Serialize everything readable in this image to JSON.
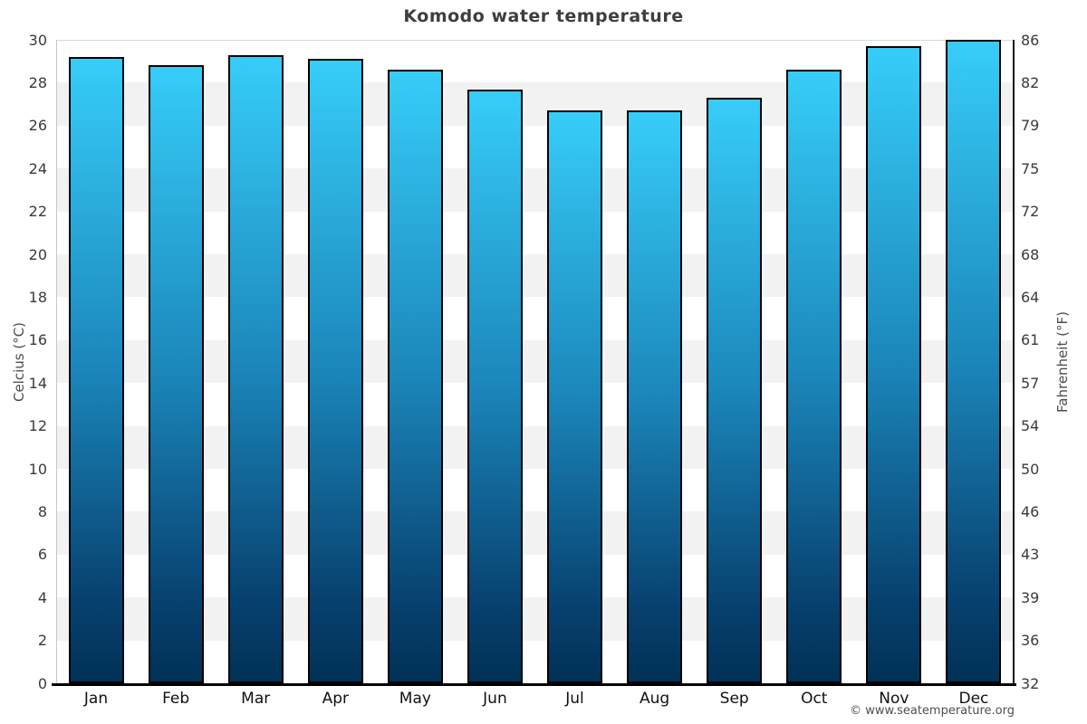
{
  "title": "Komodo water temperature",
  "footer": "© www.seatemperature.org",
  "chart_data": {
    "type": "bar",
    "title": "Komodo water temperature",
    "categories": [
      "Jan",
      "Feb",
      "Mar",
      "Apr",
      "May",
      "Jun",
      "Jul",
      "Aug",
      "Sep",
      "Oct",
      "Nov",
      "Dec"
    ],
    "values": [
      29.2,
      28.8,
      29.3,
      29.1,
      28.6,
      27.7,
      26.7,
      26.7,
      27.3,
      28.6,
      29.7,
      30.0
    ],
    "unit": "°C",
    "ylabel_left": "Celcius (°C)",
    "ylabel_right": "Fahrenheit (°F)",
    "ylim": [
      0,
      30
    ],
    "yticks_left": [
      30,
      28,
      26,
      24,
      22,
      20,
      18,
      16,
      14,
      12,
      10,
      8,
      6,
      4,
      2,
      0
    ],
    "yticks_right": [
      86,
      82,
      79,
      75,
      72,
      68,
      64,
      61,
      57,
      54,
      50,
      46,
      43,
      39,
      36,
      32
    ],
    "legend": "none",
    "grid": "alternating horizontal bands every 2°C",
    "band_colors": [
      "#ffffff",
      "#f2f2f2"
    ],
    "bar_gradient": [
      "#37cdf9",
      "#1b86ba",
      "#07416f",
      "#013156"
    ],
    "bar_border_color": "#000000",
    "axis_text_color": "#3b3b3b",
    "title_color": "#3e3e3e"
  }
}
